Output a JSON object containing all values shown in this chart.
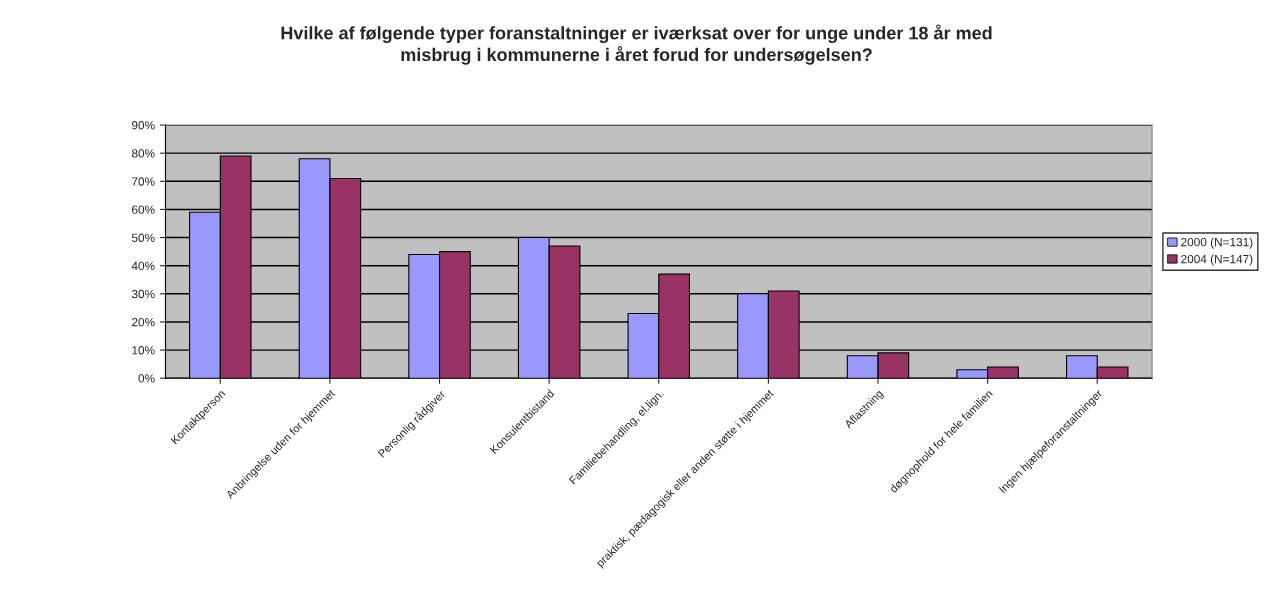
{
  "chart_data": {
    "type": "bar",
    "title": "Hvilke af følgende typer foranstaltninger er iværksat over for unge under 18 år med\nmisbrug i kommunerne i året forud for undersøgelsen?",
    "categories": [
      "Kontaktperson",
      "Anbringelse uden for hjemmet",
      "Personlig rådgiver",
      "Konsulentbistand",
      "Familiebehandling, el.lign.",
      "praktisk, pædagogisk eller anden støtte i hjemmet",
      "Aflastning",
      "døgnophold for hele familien",
      "Ingen hjælpeforanstaltninger"
    ],
    "series": [
      {
        "name": "2000 (N=131)",
        "color": "#9999ff",
        "values": [
          59,
          78,
          44,
          50,
          23,
          30,
          8,
          3,
          8
        ]
      },
      {
        "name": "2004 (N=147)",
        "color": "#993366",
        "values": [
          79,
          71,
          45,
          47,
          37,
          31,
          9,
          4,
          4
        ]
      }
    ],
    "ylim": [
      0,
      90
    ],
    "yticks": [
      {
        "value": 0,
        "label": "0%"
      },
      {
        "value": 10,
        "label": "10%"
      },
      {
        "value": 20,
        "label": "20%"
      },
      {
        "value": 30,
        "label": "30%"
      },
      {
        "value": 40,
        "label": "40%"
      },
      {
        "value": 50,
        "label": "50%"
      },
      {
        "value": 60,
        "label": "60%"
      },
      {
        "value": 70,
        "label": "70%"
      },
      {
        "value": 80,
        "label": "80%"
      },
      {
        "value": 90,
        "label": "90%"
      }
    ],
    "grid": "y",
    "legend": "right"
  }
}
